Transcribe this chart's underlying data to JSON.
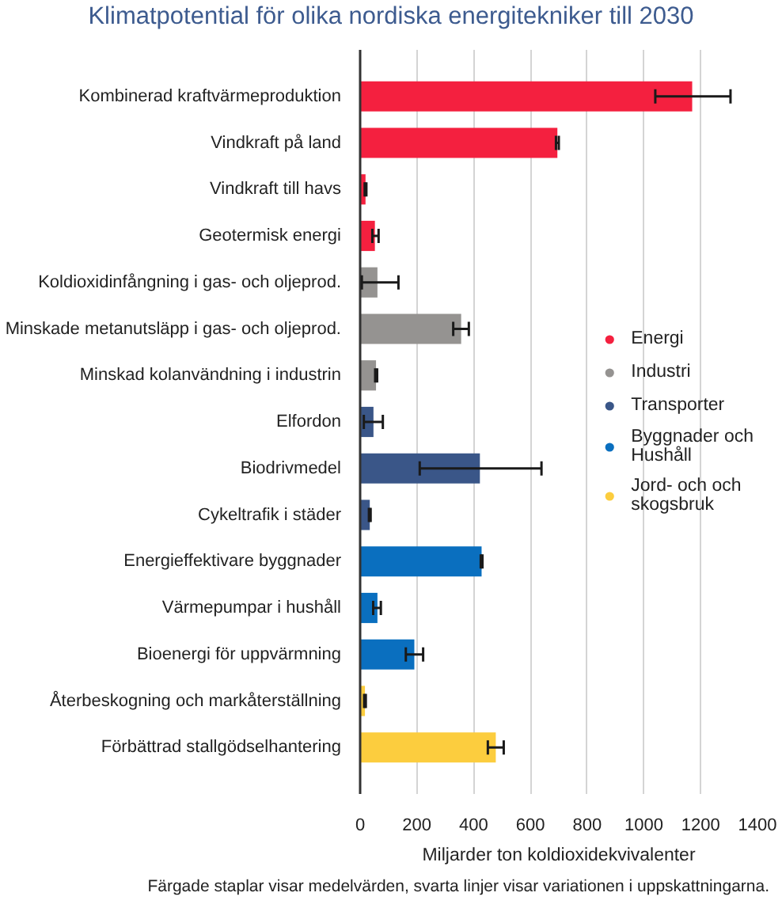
{
  "chart_data": {
    "type": "bar",
    "orientation": "horizontal",
    "stacked": true,
    "title": "Klimatpotential för olika nordiska energitekniker till 2030",
    "xlabel": "Miljarder ton koldioxidekvivalenter",
    "annotations": [
      "Färgade staplar visar medelvärden, svarta linjer visar variationen i uppskattningarna."
    ],
    "categories": [
      "Kombinerad kraftvärmeproduktion",
      "Vindkraft på land",
      "Vindkraft till havs",
      "Geotermisk energi",
      "Koldioxidinfångning i gas- och oljeprod.",
      "Minskade metanutsläpp i gas- och oljeprod.",
      "Minskad kolanvändning i industrin",
      "Elfordon",
      "Biodrivmedel",
      "Cykeltrafik i städer",
      "Energieffektivare byggnader",
      "Värmepumpar i hushåll",
      "Bioenergi för uppvärmning",
      "Återbeskogning och markåterställning",
      "Förbättrad stallgödselhantering"
    ],
    "series": [
      {
        "name": "Energi",
        "color": "#f4203f",
        "values": [
          1170,
          695,
          19,
          52,
          null,
          null,
          null,
          null,
          null,
          null,
          null,
          null,
          null,
          null,
          null
        ],
        "errors": [
          [
            1040,
            1305
          ],
          [
            690,
            700
          ],
          [
            16,
            22
          ],
          [
            43,
            65
          ],
          null,
          null,
          null,
          null,
          null,
          null,
          null,
          null,
          null,
          null,
          null
        ]
      },
      {
        "name": "Industri",
        "color": "#959391",
        "values": [
          null,
          null,
          null,
          null,
          61,
          356,
          56,
          null,
          null,
          null,
          null,
          null,
          null,
          null,
          null
        ],
        "errors": [
          null,
          null,
          null,
          null,
          [
            6,
            135
          ],
          [
            328,
            383
          ],
          [
            53,
            60
          ],
          null,
          null,
          null,
          null,
          null,
          null,
          null,
          null
        ]
      },
      {
        "name": "Transporter",
        "color": "#3a5688",
        "values": [
          null,
          null,
          null,
          null,
          null,
          null,
          null,
          47,
          422,
          34,
          null,
          null,
          null,
          null,
          null
        ],
        "errors": [
          null,
          null,
          null,
          null,
          null,
          null,
          null,
          [
            13,
            80
          ],
          [
            210,
            639
          ],
          [
            31,
            37
          ],
          null,
          null,
          null,
          null,
          null
        ]
      },
      {
        "name": "Byggnader och Hushåll",
        "color": "#0a6fbf",
        "values": [
          null,
          null,
          null,
          null,
          null,
          null,
          null,
          null,
          null,
          null,
          428,
          61,
          191,
          null,
          null
        ],
        "errors": [
          null,
          null,
          null,
          null,
          null,
          null,
          null,
          null,
          null,
          null,
          [
            425,
            431
          ],
          [
            46,
            73
          ],
          [
            161,
            222
          ],
          null,
          null
        ]
      },
      {
        "name": "Jord- och och skogsbruk",
        "color": "#fccd3e",
        "values": [
          null,
          null,
          null,
          null,
          null,
          null,
          null,
          null,
          null,
          null,
          null,
          null,
          null,
          17,
          478
        ],
        "errors": [
          null,
          null,
          null,
          null,
          null,
          null,
          null,
          null,
          null,
          null,
          null,
          null,
          null,
          [
            14,
            20
          ],
          [
            450,
            506
          ]
        ]
      }
    ],
    "xlim": [
      0,
      1400
    ],
    "xticks": [
      0,
      200,
      400,
      600,
      800,
      1000,
      1200,
      1400
    ],
    "grid": "x",
    "legend": "right"
  }
}
